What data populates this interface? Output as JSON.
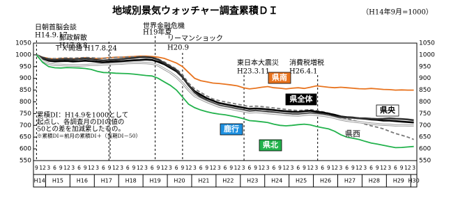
{
  "chart_data": {
    "type": "line",
    "title": "地域別景気ウォッチャー調査累積ＤＩ",
    "subtitle": "（H14年9月=1000）",
    "categories": [
      "9",
      "12",
      "3",
      "6",
      "9",
      "12",
      "3",
      "6",
      "9",
      "12",
      "3",
      "6",
      "9",
      "12",
      "3",
      "6",
      "9",
      "12",
      "3",
      "6",
      "9",
      "12",
      "3",
      "6",
      "9",
      "12",
      "3",
      "6",
      "9",
      "12",
      "3",
      "6",
      "9",
      "12",
      "3",
      "6",
      "9",
      "12",
      "3",
      "6",
      "9",
      "12",
      "3",
      "6",
      "9",
      "12",
      "3",
      "6",
      "9",
      "12",
      "3",
      "6",
      "9",
      "12",
      "3",
      "6",
      "9",
      "12",
      "3",
      "6",
      "9",
      "12",
      "3"
    ],
    "years": [
      "H14",
      "H15",
      "H16",
      "H17",
      "H18",
      "H19",
      "H20",
      "H21",
      "H22",
      "H23",
      "H24",
      "H25",
      "H26",
      "H27",
      "H28",
      "H29",
      "H30"
    ],
    "ylim": [
      550,
      1050
    ],
    "yticks": [
      550,
      600,
      650,
      700,
      750,
      800,
      850,
      900,
      950,
      1000,
      1050
    ],
    "grid": false,
    "series": [
      {
        "name": "県南",
        "color": "#e8731e",
        "dash": false,
        "values": [
          1000,
          990,
          985,
          982,
          985,
          985,
          983,
          985,
          988,
          985,
          984,
          986,
          988,
          990,
          990,
          992,
          993,
          995,
          995,
          993,
          990,
          985,
          975,
          965,
          950,
          925,
          900,
          890,
          885,
          880,
          878,
          875,
          872,
          868,
          860,
          855,
          858,
          862,
          865,
          860,
          858,
          855,
          858,
          860,
          857,
          862,
          868,
          865,
          862,
          860,
          862,
          860,
          858,
          856,
          855,
          857,
          855,
          853,
          852,
          850,
          851,
          850,
          850
        ]
      },
      {
        "name": "県西",
        "color": "#777777",
        "dash": true,
        "values": [
          1000,
          990,
          985,
          984,
          986,
          987,
          986,
          987,
          989,
          988,
          986,
          985,
          987,
          989,
          990,
          991,
          992,
          993,
          993,
          990,
          982,
          970,
          955,
          940,
          915,
          880,
          855,
          840,
          825,
          812,
          805,
          800,
          795,
          790,
          785,
          780,
          782,
          780,
          777,
          774,
          771,
          768,
          765,
          763,
          765,
          767,
          763,
          758,
          752,
          745,
          735,
          728,
          722,
          715,
          705,
          698,
          692,
          685,
          675,
          665,
          658,
          650,
          640
        ]
      },
      {
        "name": "県全体",
        "color": "#000000",
        "dash": false,
        "values": [
          1000,
          985,
          975,
          972,
          973,
          974,
          972,
          973,
          975,
          973,
          970,
          968,
          970,
          972,
          973,
          975,
          977,
          978,
          980,
          978,
          970,
          960,
          945,
          930,
          905,
          870,
          845,
          830,
          815,
          805,
          795,
          790,
          785,
          780,
          775,
          770,
          772,
          770,
          768,
          765,
          762,
          760,
          758,
          757,
          760,
          762,
          758,
          755,
          750,
          745,
          738,
          735,
          733,
          730,
          728,
          725,
          723,
          720,
          720,
          718,
          716,
          714,
          712
        ]
      },
      {
        "name": "県央",
        "color": "#333333",
        "dash": false,
        "values": [
          1000,
          988,
          980,
          978,
          980,
          982,
          980,
          982,
          984,
          982,
          978,
          976,
          978,
          980,
          982,
          985,
          987,
          990,
          990,
          988,
          980,
          965,
          950,
          935,
          905,
          870,
          840,
          820,
          805,
          795,
          785,
          780,
          775,
          770,
          765,
          760,
          763,
          760,
          758,
          755,
          752,
          750,
          748,
          747,
          750,
          752,
          750,
          747,
          742,
          738,
          735,
          733,
          732,
          730,
          730,
          728,
          727,
          728,
          730,
          728,
          727,
          725,
          722
        ]
      },
      {
        "name": "鹿行",
        "color": "#9a9a9a",
        "dash": false,
        "values": [
          1000,
          975,
          962,
          958,
          957,
          956,
          955,
          954,
          956,
          958,
          958,
          960,
          961,
          962,
          963,
          965,
          966,
          966,
          965,
          963,
          955,
          940,
          925,
          905,
          880,
          850,
          825,
          812,
          800,
          790,
          780,
          775,
          770,
          765,
          760,
          755,
          757,
          755,
          752,
          750,
          748,
          745,
          743,
          742,
          745,
          747,
          745,
          742,
          738,
          732,
          725,
          720,
          717,
          714,
          710,
          707,
          705,
          703,
          702,
          700,
          701,
          700,
          700
        ]
      },
      {
        "name": "県北",
        "color": "#22b24c",
        "dash": false,
        "values": [
          1000,
          968,
          950,
          945,
          944,
          946,
          945,
          944,
          942,
          938,
          930,
          925,
          924,
          922,
          921,
          920,
          918,
          915,
          912,
          910,
          900,
          885,
          870,
          850,
          820,
          790,
          775,
          765,
          758,
          752,
          748,
          745,
          740,
          735,
          728,
          720,
          718,
          715,
          712,
          705,
          700,
          698,
          700,
          703,
          705,
          702,
          695,
          690,
          685,
          675,
          660,
          650,
          645,
          640,
          632,
          625,
          620,
          615,
          610,
          605,
          606,
          608,
          610
        ]
      }
    ],
    "annotations": [
      {
        "label": "日朝首脳会談",
        "date": "H14.9.17"
      },
      {
        "label": "郵政解散",
        "date": "H17.8.8"
      },
      {
        "label": "ＴＸ開通",
        "date": "H17.8.24"
      },
      {
        "label": "世界金融危機",
        "date": "H19年夏"
      },
      {
        "label": "リーマンショック",
        "date": "H20.9"
      },
      {
        "label": "東日本大震災",
        "date": "H23.3.11"
      },
      {
        "label": "消費税増税",
        "date": "H26.4.1"
      }
    ],
    "note": [
      "累積DI：H14.9を1000として",
      "起点し、各調査月のDIの値の",
      "50との差を加減累したもの。",
      "※累積DI＝前月の累積DI＋（当期DI－50）"
    ]
  }
}
